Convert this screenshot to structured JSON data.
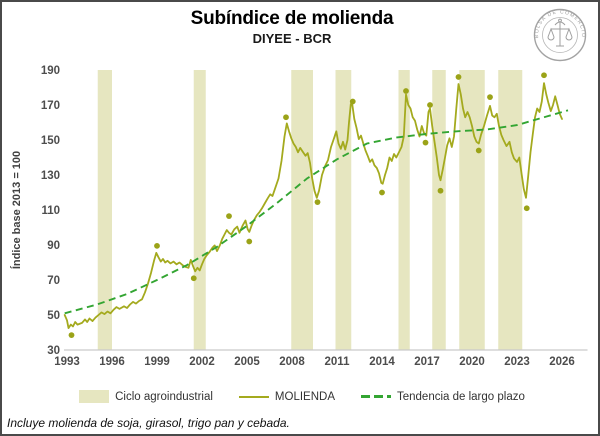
{
  "header": {
    "title": "Subíndice de molienda",
    "subtitle": "DIYEE - BCR",
    "logo_text": "BOLSA DE COMERCIO DE ROSARIO"
  },
  "footnote": "Incluye molienda de soja, girasol, trigo pan y cebada.",
  "legend": {
    "band_label": "Ciclo agroindustrial",
    "line_label": "MOLIENDA",
    "trend_label": "Tendencia de largo plazo"
  },
  "colors": {
    "line": "#a4aa1e",
    "marker": "#9ba318",
    "trend": "#33a532",
    "band": "#e6e6c0",
    "axis_text": "#4d4d4d",
    "axis_line": "#c9c9c9",
    "logo": "#a3a3a3"
  },
  "chart_data": {
    "type": "line",
    "title": "Subíndice de molienda",
    "subtitle": "DIYEE - BCR",
    "xlabel": "",
    "ylabel": "Índice base 2013 = 100",
    "ylim": [
      30,
      190
    ],
    "xlim": [
      1992.8,
      2027.7
    ],
    "y_ticks": [
      30,
      50,
      70,
      90,
      110,
      130,
      150,
      170,
      190
    ],
    "x_ticks": [
      1993,
      1996,
      1999,
      2002,
      2005,
      2008,
      2011,
      2014,
      2017,
      2020,
      2023,
      2026
    ],
    "grid": false,
    "legend_position": "bottom",
    "bands": [
      [
        1995.05,
        1996.0
      ],
      [
        2001.45,
        2002.25
      ],
      [
        2007.95,
        2009.4
      ],
      [
        2010.9,
        2011.95
      ],
      [
        2015.1,
        2015.85
      ],
      [
        2017.35,
        2018.25
      ],
      [
        2019.15,
        2020.85
      ],
      [
        2021.75,
        2023.35
      ]
    ],
    "series": [
      {
        "name": "MOLIENDA",
        "style": "solid",
        "points": [
          [
            1992.85,
            50
          ],
          [
            1993.0,
            47
          ],
          [
            1993.1,
            42.5
          ],
          [
            1993.25,
            44.5
          ],
          [
            1993.4,
            43.5
          ],
          [
            1993.55,
            46
          ],
          [
            1993.7,
            44.5
          ],
          [
            1994.0,
            45.5
          ],
          [
            1994.2,
            47.5
          ],
          [
            1994.35,
            46
          ],
          [
            1994.5,
            48
          ],
          [
            1994.7,
            46.5
          ],
          [
            1994.9,
            48.5
          ],
          [
            1995.1,
            50
          ],
          [
            1995.3,
            51.5
          ],
          [
            1995.5,
            50.5
          ],
          [
            1995.7,
            52
          ],
          [
            1995.9,
            51
          ],
          [
            1996.1,
            53
          ],
          [
            1996.3,
            54.5
          ],
          [
            1996.5,
            53.5
          ],
          [
            1996.8,
            55
          ],
          [
            1997.0,
            54
          ],
          [
            1997.2,
            56
          ],
          [
            1997.4,
            57.5
          ],
          [
            1997.6,
            56.5
          ],
          [
            1997.8,
            58
          ],
          [
            1998.0,
            59
          ],
          [
            1998.2,
            63
          ],
          [
            1998.4,
            68
          ],
          [
            1998.6,
            74
          ],
          [
            1998.8,
            81
          ],
          [
            1998.95,
            85.5
          ],
          [
            1999.1,
            83
          ],
          [
            1999.25,
            80.5
          ],
          [
            1999.4,
            82
          ],
          [
            1999.55,
            80
          ],
          [
            1999.7,
            81
          ],
          [
            1999.9,
            79.5
          ],
          [
            2000.1,
            80.5
          ],
          [
            2000.3,
            79
          ],
          [
            2000.5,
            80
          ],
          [
            2000.7,
            78.5
          ],
          [
            2000.9,
            77.5
          ],
          [
            2001.1,
            77
          ],
          [
            2001.25,
            81.5
          ],
          [
            2001.4,
            78
          ],
          [
            2001.55,
            75
          ],
          [
            2001.7,
            77
          ],
          [
            2001.85,
            75.5
          ],
          [
            2002.0,
            79
          ],
          [
            2002.15,
            82
          ],
          [
            2002.3,
            84
          ],
          [
            2002.5,
            86
          ],
          [
            2002.7,
            88.5
          ],
          [
            2002.85,
            89.8
          ],
          [
            2003.0,
            86.5
          ],
          [
            2003.2,
            90
          ],
          [
            2003.35,
            93.5
          ],
          [
            2003.5,
            96
          ],
          [
            2003.65,
            98.5
          ],
          [
            2003.8,
            97
          ],
          [
            2003.95,
            96
          ],
          [
            2004.15,
            99
          ],
          [
            2004.35,
            100.5
          ],
          [
            2004.5,
            97
          ],
          [
            2004.7,
            101
          ],
          [
            2004.9,
            104
          ],
          [
            2005.05,
            99
          ],
          [
            2005.15,
            97.5
          ],
          [
            2005.3,
            101
          ],
          [
            2005.45,
            104
          ],
          [
            2005.65,
            107
          ],
          [
            2005.85,
            109
          ],
          [
            2006.0,
            111
          ],
          [
            2006.2,
            114
          ],
          [
            2006.4,
            117
          ],
          [
            2006.55,
            119
          ],
          [
            2006.7,
            118
          ],
          [
            2006.9,
            123
          ],
          [
            2007.1,
            128
          ],
          [
            2007.3,
            138
          ],
          [
            2007.5,
            152
          ],
          [
            2007.65,
            159.5
          ],
          [
            2007.8,
            155
          ],
          [
            2007.95,
            151
          ],
          [
            2008.1,
            148
          ],
          [
            2008.25,
            146
          ],
          [
            2008.4,
            143
          ],
          [
            2008.55,
            145.5
          ],
          [
            2008.7,
            143.5
          ],
          [
            2008.9,
            141
          ],
          [
            2009.05,
            142.5
          ],
          [
            2009.2,
            137
          ],
          [
            2009.35,
            128
          ],
          [
            2009.5,
            121
          ],
          [
            2009.65,
            117
          ],
          [
            2009.8,
            121
          ],
          [
            2010.0,
            130
          ],
          [
            2010.2,
            135
          ],
          [
            2010.4,
            138.5
          ],
          [
            2010.6,
            146
          ],
          [
            2010.8,
            151
          ],
          [
            2010.95,
            155
          ],
          [
            2011.1,
            148
          ],
          [
            2011.25,
            145
          ],
          [
            2011.4,
            149
          ],
          [
            2011.55,
            144.5
          ],
          [
            2011.7,
            150
          ],
          [
            2011.8,
            160
          ],
          [
            2011.92,
            170.5
          ],
          [
            2012.0,
            171.5
          ],
          [
            2012.15,
            162
          ],
          [
            2012.3,
            157
          ],
          [
            2012.45,
            150.5
          ],
          [
            2012.6,
            152.5
          ],
          [
            2012.75,
            148
          ],
          [
            2012.9,
            144
          ],
          [
            2013.05,
            141
          ],
          [
            2013.2,
            137.5
          ],
          [
            2013.35,
            139
          ],
          [
            2013.5,
            135.5
          ],
          [
            2013.65,
            134
          ],
          [
            2013.8,
            131
          ],
          [
            2013.95,
            125.5
          ],
          [
            2014.05,
            125
          ],
          [
            2014.2,
            130
          ],
          [
            2014.35,
            134
          ],
          [
            2014.5,
            140
          ],
          [
            2014.65,
            138
          ],
          [
            2014.8,
            142
          ],
          [
            2014.95,
            140
          ],
          [
            2015.1,
            142.5
          ],
          [
            2015.3,
            146
          ],
          [
            2015.45,
            152
          ],
          [
            2015.6,
            176
          ],
          [
            2015.75,
            170
          ],
          [
            2015.9,
            168
          ],
          [
            2016.05,
            163
          ],
          [
            2016.2,
            161
          ],
          [
            2016.35,
            156
          ],
          [
            2016.5,
            152
          ],
          [
            2016.65,
            158
          ],
          [
            2016.8,
            154
          ],
          [
            2016.95,
            152.5
          ],
          [
            2017.1,
            166
          ],
          [
            2017.2,
            168
          ],
          [
            2017.35,
            158
          ],
          [
            2017.5,
            149
          ],
          [
            2017.65,
            140
          ],
          [
            2017.8,
            130
          ],
          [
            2017.9,
            127
          ],
          [
            2018.05,
            133
          ],
          [
            2018.2,
            140
          ],
          [
            2018.35,
            147
          ],
          [
            2018.5,
            151
          ],
          [
            2018.65,
            146
          ],
          [
            2018.8,
            152
          ],
          [
            2018.95,
            168
          ],
          [
            2019.1,
            182
          ],
          [
            2019.25,
            176
          ],
          [
            2019.4,
            168
          ],
          [
            2019.55,
            163
          ],
          [
            2019.7,
            166
          ],
          [
            2019.85,
            163
          ],
          [
            2020.0,
            158
          ],
          [
            2020.15,
            152
          ],
          [
            2020.3,
            149
          ],
          [
            2020.45,
            148
          ],
          [
            2020.6,
            153
          ],
          [
            2020.8,
            158
          ],
          [
            2021.0,
            164
          ],
          [
            2021.2,
            169.5
          ],
          [
            2021.35,
            164
          ],
          [
            2021.5,
            163
          ],
          [
            2021.65,
            165
          ],
          [
            2021.8,
            158
          ],
          [
            2021.95,
            153
          ],
          [
            2022.1,
            150
          ],
          [
            2022.3,
            146.5
          ],
          [
            2022.5,
            149
          ],
          [
            2022.65,
            143
          ],
          [
            2022.8,
            139.5
          ],
          [
            2023.0,
            137.5
          ],
          [
            2023.15,
            140
          ],
          [
            2023.3,
            131
          ],
          [
            2023.45,
            122
          ],
          [
            2023.6,
            117
          ],
          [
            2023.75,
            130
          ],
          [
            2023.9,
            143
          ],
          [
            2024.05,
            153
          ],
          [
            2024.2,
            163
          ],
          [
            2024.35,
            168
          ],
          [
            2024.5,
            166
          ],
          [
            2024.65,
            172
          ],
          [
            2024.8,
            182.5
          ],
          [
            2024.95,
            176
          ],
          [
            2025.1,
            171
          ],
          [
            2025.25,
            166.5
          ],
          [
            2025.4,
            170
          ],
          [
            2025.55,
            175
          ],
          [
            2025.7,
            170
          ],
          [
            2025.85,
            165
          ],
          [
            2026.0,
            162
          ]
        ]
      },
      {
        "name": "Tendencia de largo plazo",
        "style": "dashed",
        "points": [
          [
            1992.85,
            51
          ],
          [
            1995,
            56
          ],
          [
            1997,
            62
          ],
          [
            1999,
            70
          ],
          [
            2001,
            78.5
          ],
          [
            2003,
            89
          ],
          [
            2005,
            101
          ],
          [
            2007,
            114
          ],
          [
            2009,
            128
          ],
          [
            2011,
            139
          ],
          [
            2013,
            148
          ],
          [
            2015,
            151.5
          ],
          [
            2017,
            153.5
          ],
          [
            2019,
            155
          ],
          [
            2021,
            156
          ],
          [
            2023,
            158.5
          ],
          [
            2025,
            163.5
          ],
          [
            2026.4,
            167
          ]
        ]
      }
    ],
    "markers": {
      "name": "extremos anuales",
      "points": [
        [
          1993.3,
          38.5
        ],
        [
          1999.0,
          89.5
        ],
        [
          2001.45,
          71
        ],
        [
          2003.8,
          106.5
        ],
        [
          2005.15,
          92
        ],
        [
          2007.6,
          163
        ],
        [
          2009.7,
          114.5
        ],
        [
          2012.05,
          172
        ],
        [
          2014.0,
          120
        ],
        [
          2015.6,
          178
        ],
        [
          2016.9,
          148.5
        ],
        [
          2017.2,
          170
        ],
        [
          2017.9,
          121
        ],
        [
          2019.1,
          186
        ],
        [
          2020.45,
          144
        ],
        [
          2021.2,
          174.5
        ],
        [
          2023.65,
          111
        ],
        [
          2024.8,
          187
        ]
      ]
    }
  }
}
